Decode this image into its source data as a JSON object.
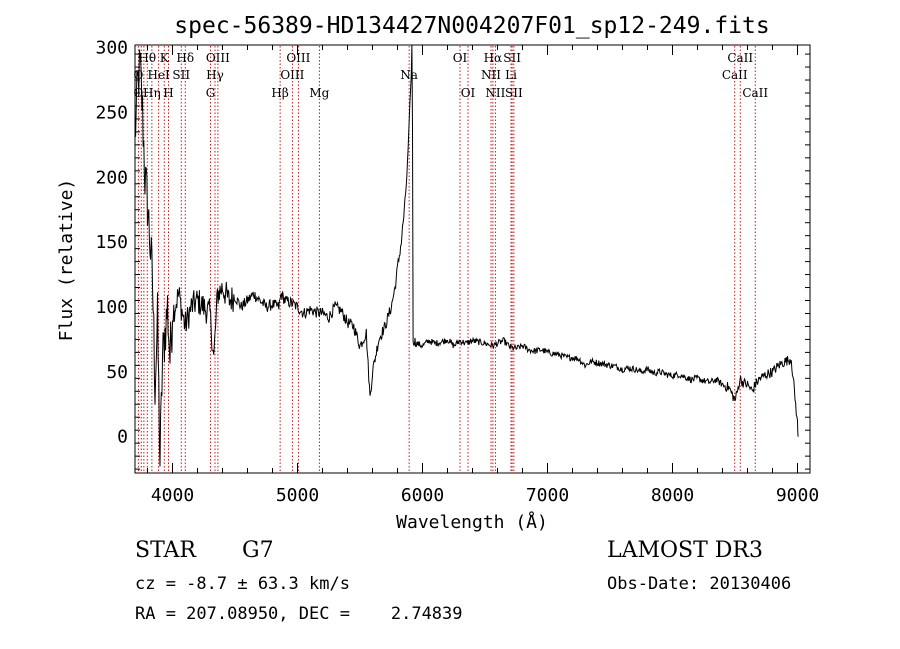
{
  "chart_data": {
    "type": "line",
    "title": "spec-56389-HD134427N004207F01_sp12-249.fits",
    "xlabel": "Wavelength (Å)",
    "ylabel": "Flux (relative)",
    "xlim": [
      3700,
      9100
    ],
    "ylim": [
      -28,
      302
    ],
    "xticks": [
      4000,
      5000,
      6000,
      7000,
      8000,
      9000
    ],
    "yticks": [
      0,
      50,
      100,
      150,
      200,
      250,
      300
    ],
    "line_color": "#c00000",
    "series": [
      {
        "name": "flux",
        "x": [
          3700,
          3720,
          3740,
          3760,
          3780,
          3800,
          3820,
          3840,
          3860,
          3880,
          3900,
          3920,
          3940,
          3960,
          3980,
          4000,
          4050,
          4100,
          4150,
          4200,
          4250,
          4300,
          4330,
          4360,
          4400,
          4450,
          4500,
          4550,
          4600,
          4650,
          4700,
          4750,
          4800,
          4850,
          4870,
          4900,
          4950,
          5000,
          5050,
          5100,
          5150,
          5200,
          5250,
          5300,
          5350,
          5400,
          5450,
          5500,
          5550,
          5580,
          5600,
          5650,
          5700,
          5750,
          5780,
          5800,
          5830,
          5860,
          5880,
          5900,
          5910,
          5915,
          5920,
          5925,
          5950,
          6000,
          6050,
          6100,
          6150,
          6200,
          6250,
          6300,
          6350,
          6400,
          6450,
          6500,
          6563,
          6600,
          6650,
          6700,
          6750,
          6800,
          6850,
          6900,
          6950,
          7000,
          7050,
          7100,
          7150,
          7200,
          7250,
          7300,
          7350,
          7400,
          7450,
          7500,
          7550,
          7600,
          7650,
          7700,
          7750,
          7800,
          7850,
          7900,
          7950,
          8000,
          8050,
          8100,
          8150,
          8200,
          8250,
          8300,
          8350,
          8400,
          8450,
          8500,
          8520,
          8540,
          8560,
          8600,
          8640,
          8660,
          8700,
          8750,
          8800,
          8850,
          8900,
          8950,
          9000,
          9005
        ],
        "y": [
          230,
          270,
          285,
          250,
          200,
          180,
          150,
          120,
          40,
          90,
          -20,
          60,
          80,
          100,
          60,
          95,
          110,
          85,
          100,
          105,
          100,
          95,
          60,
          110,
          115,
          105,
          108,
          100,
          105,
          110,
          105,
          100,
          102,
          100,
          110,
          105,
          103,
          100,
          95,
          98,
          96,
          95,
          92,
          100,
          97,
          88,
          85,
          70,
          80,
          30,
          50,
          75,
          85,
          100,
          115,
          130,
          150,
          180,
          210,
          255,
          280,
          302,
          240,
          75,
          72,
          70,
          74,
          72,
          73,
          75,
          70,
          74,
          72,
          74,
          73,
          72,
          70,
          72,
          74,
          69,
          68,
          70,
          67,
          66,
          67,
          65,
          64,
          63,
          61,
          61,
          60,
          55,
          58,
          57,
          56,
          55,
          54,
          52,
          53,
          52,
          50,
          52,
          49,
          50,
          48,
          47,
          48,
          46,
          44,
          45,
          43,
          42,
          44,
          40,
          38,
          28,
          35,
          45,
          42,
          40,
          35,
          40,
          45,
          48,
          50,
          55,
          58,
          60,
          10,
          0
        ]
      }
    ],
    "line_labels": [
      {
        "text": "Hδ",
        "x": 4102,
        "row": 1
      },
      {
        "text": "K",
        "x": 3934,
        "row": 1
      },
      {
        "text": "Hθ",
        "x": 3798,
        "row": 1
      },
      {
        "text": "OIII",
        "x": 4363,
        "row": 1
      },
      {
        "text": "OIII",
        "x": 5007,
        "row": 1
      },
      {
        "text": "OI",
        "x": 6300,
        "row": 1
      },
      {
        "text": "Hα",
        "x": 6563,
        "row": 1
      },
      {
        "text": "SII",
        "x": 6717,
        "row": 1
      },
      {
        "text": "CaII",
        "x": 8542,
        "row": 1
      },
      {
        "text": "O",
        "x": 3727,
        "row": 2
      },
      {
        "text": "HeI",
        "x": 3889,
        "row": 2
      },
      {
        "text": "SII",
        "x": 4070,
        "row": 2
      },
      {
        "text": "Hγ",
        "x": 4340,
        "row": 2
      },
      {
        "text": "OIII",
        "x": 4959,
        "row": 2
      },
      {
        "text": "Na",
        "x": 5893,
        "row": 2
      },
      {
        "text": "NII",
        "x": 6548,
        "row": 2
      },
      {
        "text": "Li",
        "x": 6708,
        "row": 2
      },
      {
        "text": "CaII",
        "x": 8498,
        "row": 2
      },
      {
        "text": "O",
        "x": 3727,
        "row": 3
      },
      {
        "text": "Hη",
        "x": 3835,
        "row": 3
      },
      {
        "text": "H",
        "x": 3968,
        "row": 3
      },
      {
        "text": "G",
        "x": 4304,
        "row": 3
      },
      {
        "text": "Hβ",
        "x": 4861,
        "row": 3
      },
      {
        "text": "Mg",
        "x": 5175,
        "row": 3
      },
      {
        "text": "OI",
        "x": 6364,
        "row": 3
      },
      {
        "text": "NII",
        "x": 6583,
        "row": 3
      },
      {
        "text": "SII",
        "x": 6731,
        "row": 3
      },
      {
        "text": "CaII",
        "x": 8662,
        "row": 3
      }
    ],
    "line_markers": [
      3727,
      3750,
      3771,
      3798,
      3835,
      3889,
      3934,
      3968,
      4070,
      4102,
      4304,
      4340,
      4363,
      4861,
      4959,
      5007,
      5175,
      5893,
      6300,
      6364,
      6548,
      6563,
      6583,
      6708,
      6717,
      6731,
      8498,
      8542,
      8662
    ]
  },
  "info": {
    "object_class": "STAR",
    "subclass": "G7",
    "survey": "LAMOST DR3",
    "redshift": "cz = -8.7 ± 63.3 km/s",
    "obs_date": "Obs-Date: 20130406",
    "coords": "RA = 207.08950, DEC =    2.74839"
  }
}
